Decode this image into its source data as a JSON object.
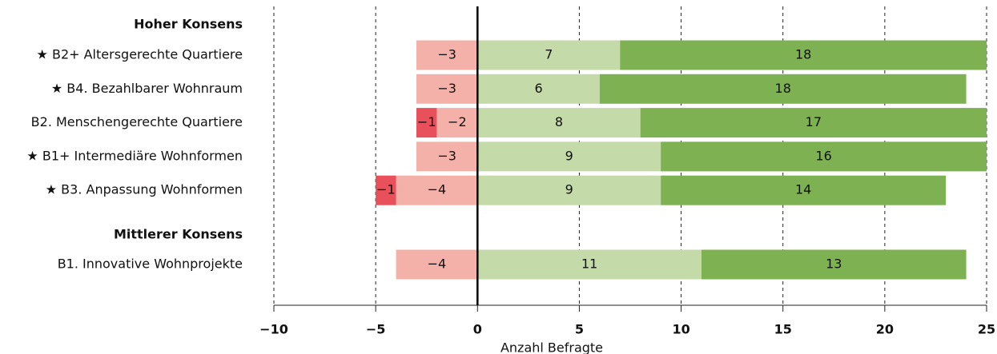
{
  "chart_data": {
    "type": "diverging_stacked_bar",
    "groups": [
      {
        "title": "Hoher Konsens",
        "categories": [
          "★ B2+ Altersgerechte Quartiere",
          "★ B4. Bezahlbarer Wohnraum",
          "B2. Menschengerechte Quartiere",
          "★ B1+ Intermediäre Wohnformen",
          "★ B3. Anpassung Wohnformen"
        ]
      },
      {
        "title": "Mittlerer Konsens",
        "categories": [
          "B1. Innovative Wohnprojekte"
        ]
      }
    ],
    "series": [
      {
        "color": "#f4b1a9",
        "values": [
          -3,
          -3,
          -2,
          -3,
          -4,
          -4
        ],
        "value_labels": [
          "−3",
          "−3",
          "−2",
          "−3",
          "−4",
          "−4"
        ]
      },
      {
        "color": "#e8505b",
        "values": [
          null,
          null,
          -1,
          null,
          -1,
          null
        ],
        "value_labels": [
          null,
          null,
          "−1",
          null,
          "−1",
          null
        ]
      },
      {
        "color": "#c4daa9",
        "values": [
          7,
          6,
          8,
          9,
          9,
          11
        ]
      },
      {
        "color": "#7db151",
        "values": [
          18,
          18,
          17,
          16,
          14,
          13
        ]
      }
    ],
    "xlim": [
      -10,
      25
    ],
    "xticks": [
      {
        "value": -10,
        "label": "−10"
      },
      {
        "value": -5,
        "label": "−5"
      },
      0,
      5,
      10,
      15,
      20,
      25
    ],
    "xlabel": "Anzahl Befragte",
    "grid": true
  }
}
